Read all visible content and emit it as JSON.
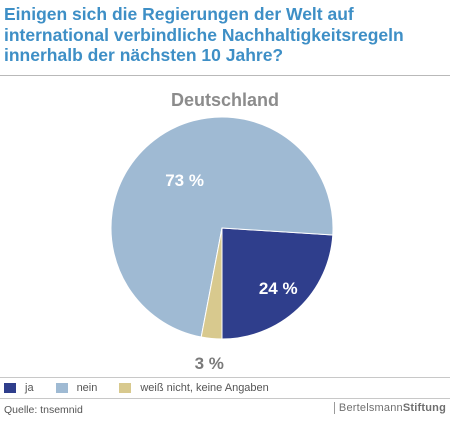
{
  "header": {
    "title": "Einigen sich die Regierungen der Welt auf international verbindliche Nachhaltigkeitsregeln innerhalb der nächsten 10 Jahre?"
  },
  "chart_data": {
    "type": "pie",
    "subtitle": "Deutschland",
    "slices": [
      {
        "name": "ja",
        "value": 24,
        "label": "24 %",
        "color": "#2f3e8c"
      },
      {
        "name": "nein",
        "value": 73,
        "label": "73 %",
        "color": "#9fbad3"
      },
      {
        "name": "weiß nicht, keine Angaben",
        "value": 3,
        "label": "3 %",
        "color": "#d8c98e"
      }
    ]
  },
  "footer": {
    "source": "Quelle: tnsemnid",
    "brand_regular": "Bertelsmann",
    "brand_bold": "Stiftung"
  }
}
